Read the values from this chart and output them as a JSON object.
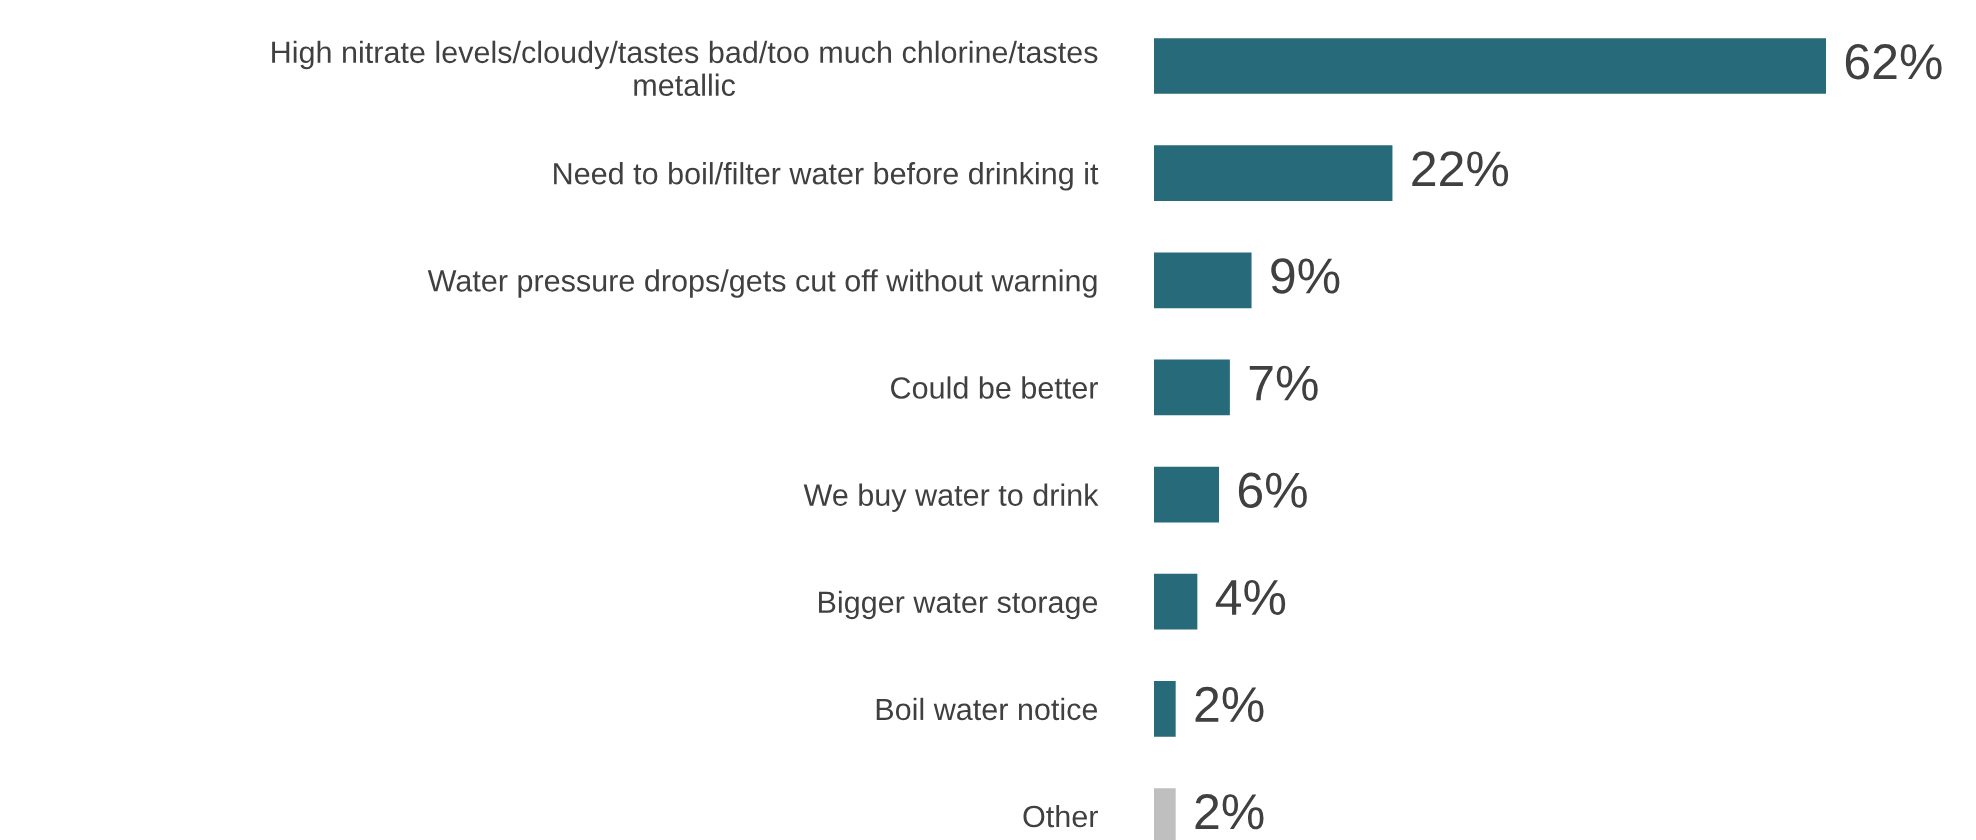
{
  "chart_data": {
    "type": "bar",
    "orientation": "horizontal",
    "categories": [
      "High nitrate levels/cloudy/tastes bad/too much chlorine/tastes\nmetallic",
      "Need to boil/filter water before drinking it",
      "Water pressure drops/gets cut off without warning",
      "Could be better",
      "We buy water to drink",
      "Bigger water storage",
      "Boil water notice",
      "Other"
    ],
    "values": [
      62,
      22,
      9,
      7,
      6,
      4,
      2,
      2
    ],
    "colors": [
      "#276a7a",
      "#276a7a",
      "#276a7a",
      "#276a7a",
      "#276a7a",
      "#276a7a",
      "#276a7a",
      "#bfbfbf"
    ],
    "value_labels": [
      "62%",
      "22%",
      "9%",
      "7%",
      "6%",
      "4%",
      "2%",
      "2%"
    ],
    "grid": false,
    "legend": false
  }
}
